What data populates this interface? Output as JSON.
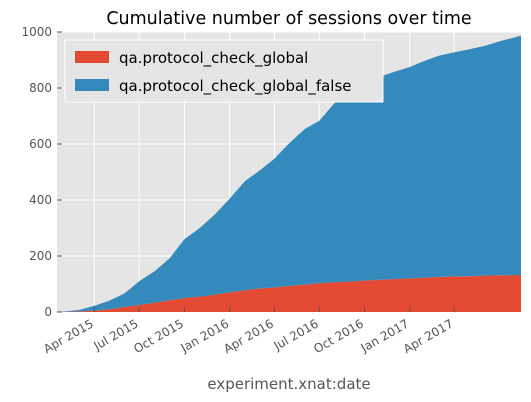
{
  "chart_data": {
    "type": "area",
    "stacked": true,
    "title": "Cumulative number of sessions over time",
    "xlabel": "experiment.xnat:date",
    "ylabel": "",
    "x_range": [
      "2015-01-15",
      "2017-08-15"
    ],
    "ylim": [
      0,
      1000
    ],
    "yticks": [
      0,
      200,
      400,
      600,
      800,
      1000
    ],
    "xticks": [
      {
        "label": "Apr 2015",
        "date": "2015-04-01"
      },
      {
        "label": "Jul 2015",
        "date": "2015-07-01"
      },
      {
        "label": "Oct 2015",
        "date": "2015-10-01"
      },
      {
        "label": "Jan 2016",
        "date": "2016-01-01"
      },
      {
        "label": "Apr 2016",
        "date": "2016-04-01"
      },
      {
        "label": "Jul 2016",
        "date": "2016-07-01"
      },
      {
        "label": "Oct 2016",
        "date": "2016-10-01"
      },
      {
        "label": "Jan 2017",
        "date": "2017-01-01"
      },
      {
        "label": "Apr 2017",
        "date": "2017-04-01"
      }
    ],
    "grid": true,
    "legend_position": "top-left",
    "x": [
      "2015-01-15",
      "2015-03-01",
      "2015-04-01",
      "2015-05-01",
      "2015-06-01",
      "2015-07-01",
      "2015-08-01",
      "2015-09-01",
      "2015-10-01",
      "2015-11-01",
      "2015-12-01",
      "2016-01-01",
      "2016-02-01",
      "2016-03-01",
      "2016-04-01",
      "2016-05-01",
      "2016-06-01",
      "2016-07-01",
      "2016-08-01",
      "2016-09-01",
      "2016-10-01",
      "2016-11-01",
      "2016-12-01",
      "2017-01-01",
      "2017-02-01",
      "2017-03-01",
      "2017-04-01",
      "2017-05-01",
      "2017-06-01",
      "2017-07-01",
      "2017-08-15"
    ],
    "series": [
      {
        "name": "qa.protocol_check_global",
        "color": "#E24A33",
        "values": [
          0,
          2,
          5,
          10,
          18,
          25,
          33,
          42,
          50,
          55,
          62,
          70,
          78,
          84,
          88,
          93,
          98,
          103,
          106,
          109,
          112,
          115,
          118,
          120,
          123,
          125,
          127,
          128,
          130,
          131,
          132
        ]
      },
      {
        "name": "qa.protocol_check_global_false",
        "color": "#348ABD",
        "values": [
          0,
          5,
          17,
          30,
          48,
          85,
          112,
          150,
          210,
          245,
          285,
          335,
          390,
          420,
          460,
          510,
          555,
          580,
          640,
          670,
          705,
          725,
          740,
          755,
          775,
          790,
          800,
          810,
          820,
          835,
          855
        ]
      }
    ]
  }
}
